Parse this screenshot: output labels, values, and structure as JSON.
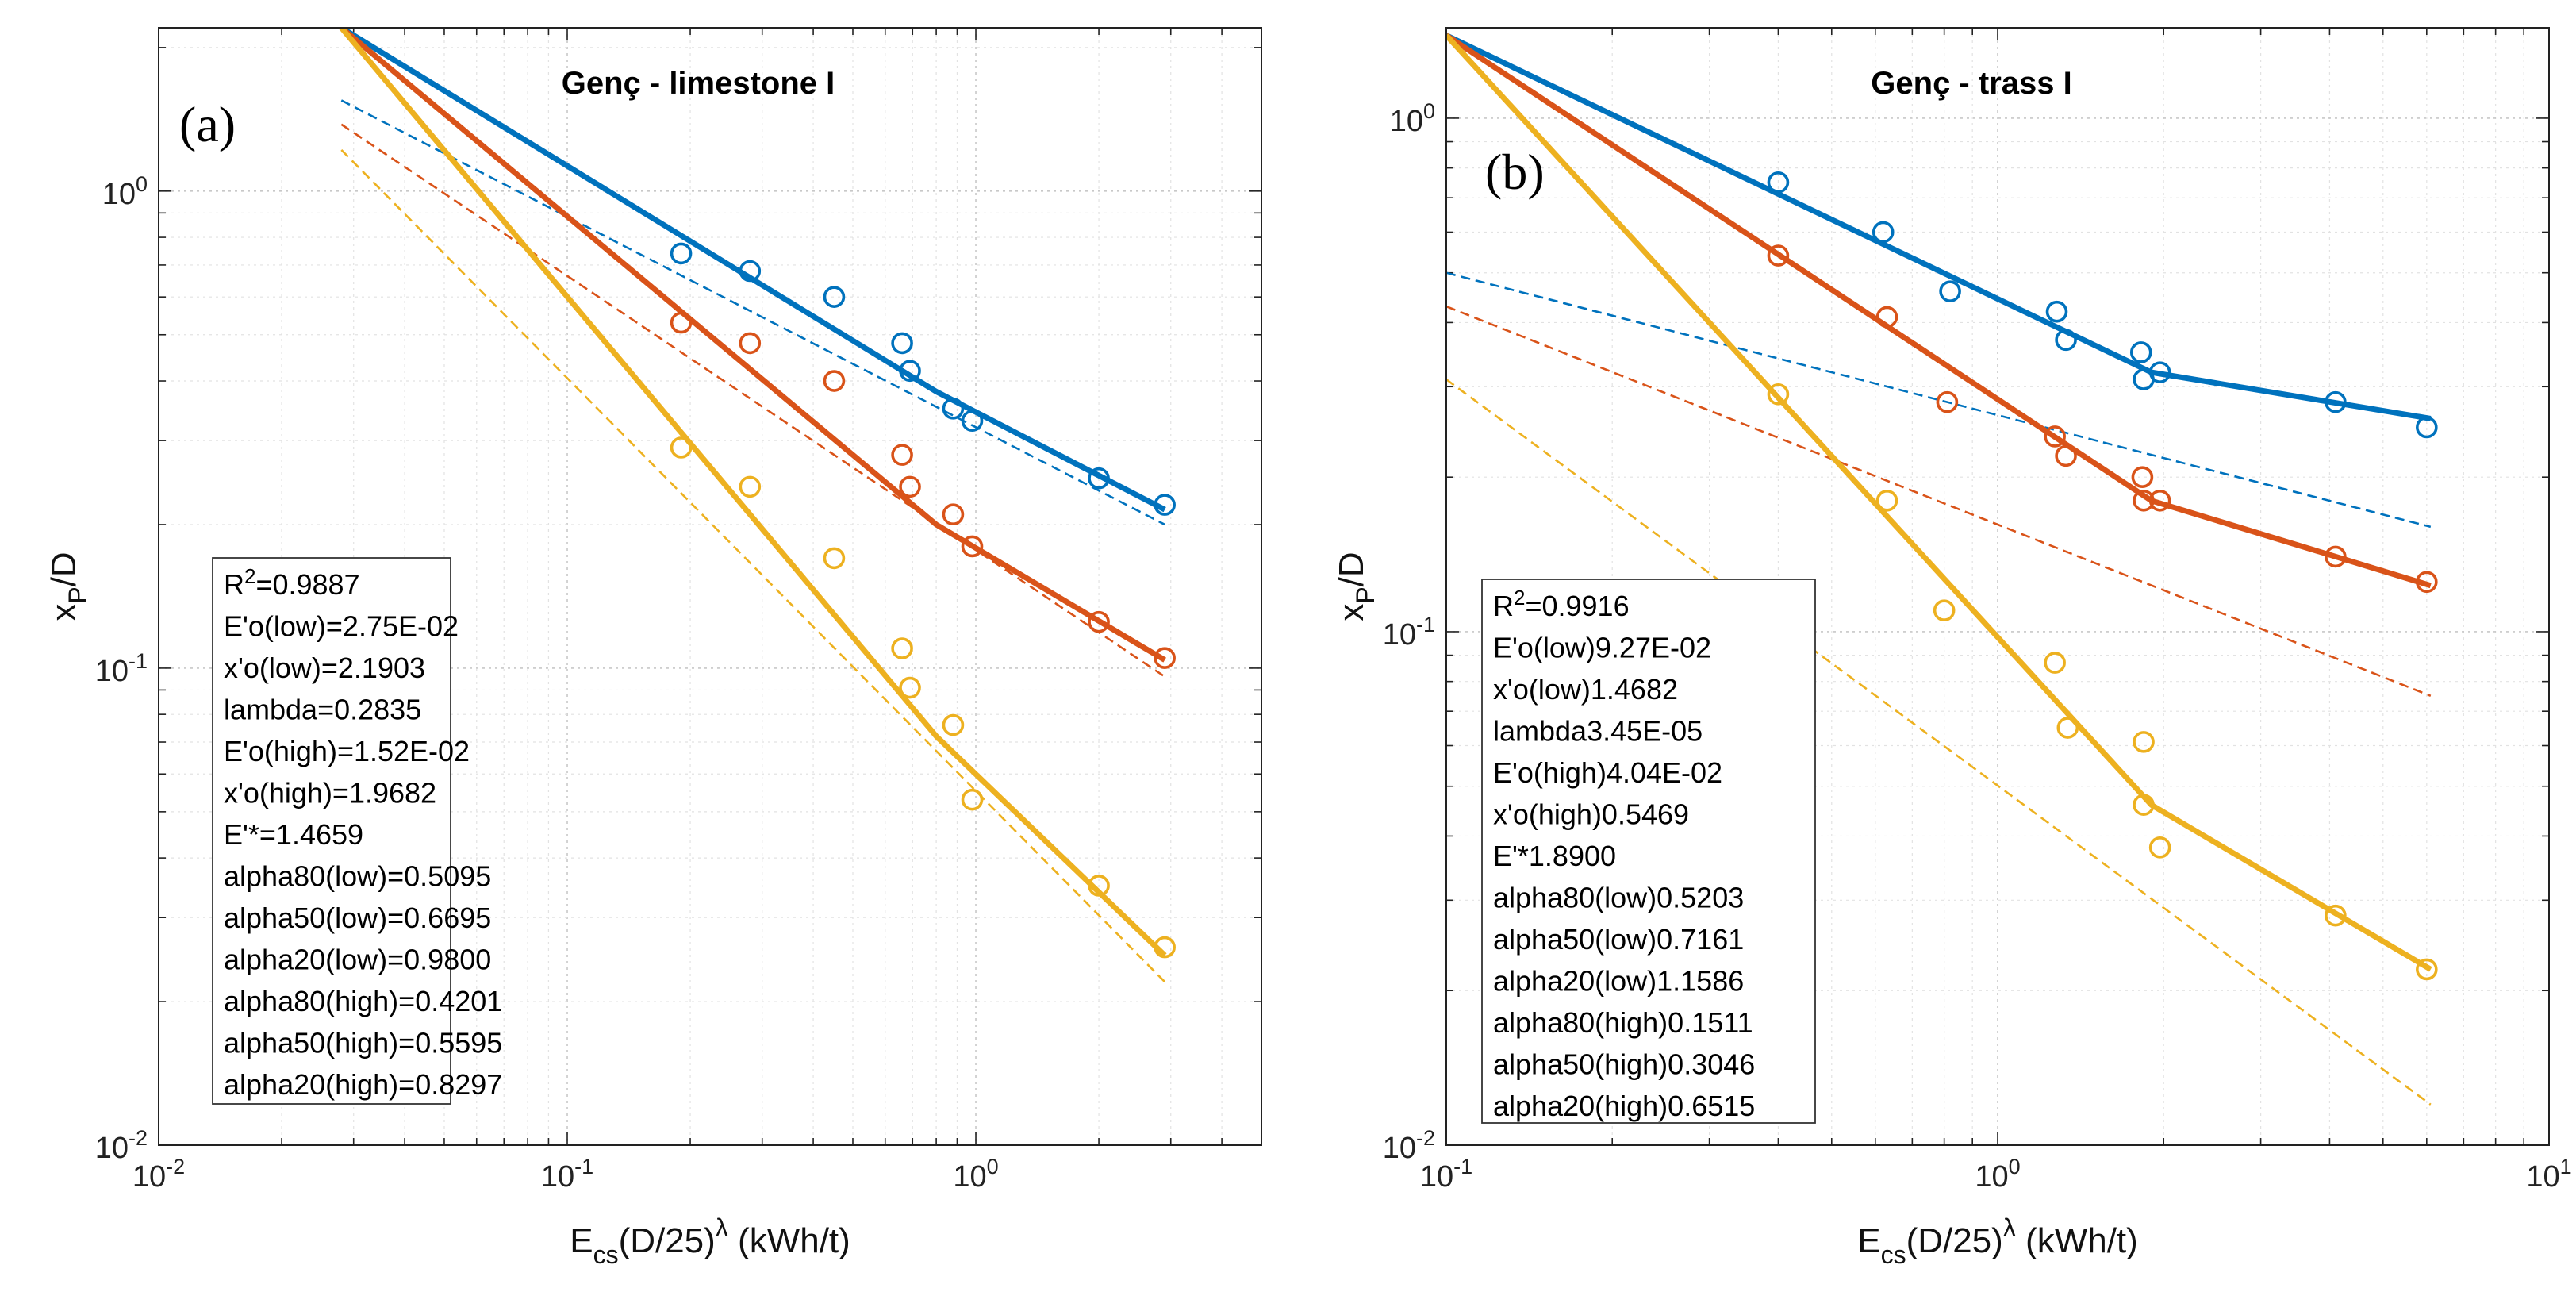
{
  "chart_data": [
    {
      "type": "line",
      "panel_label": "(a)",
      "title": "Genç - limestone I",
      "xlabel": "E_cs(D/25)^λ (kWh/t)",
      "ylabel": "x_P/D",
      "xscale": "log",
      "yscale": "log",
      "xlim": [
        0.01,
        5
      ],
      "ylim": [
        0.01,
        2.2
      ],
      "grid": true,
      "x_tick_labels": [
        {
          "v": 0.01,
          "base": "10",
          "exp": "-2"
        },
        {
          "v": 0.1,
          "base": "10",
          "exp": "-1"
        },
        {
          "v": 1,
          "base": "10",
          "exp": "0"
        }
      ],
      "y_tick_labels": [
        {
          "v": 0.01,
          "base": "10",
          "exp": "-2"
        },
        {
          "v": 0.1,
          "base": "10",
          "exp": "-1"
        },
        {
          "v": 1,
          "base": "10",
          "exp": "0"
        }
      ],
      "series": [
        {
          "name": "alpha80",
          "color": "#0072BD",
          "points": [
            [
              0.19,
              0.74
            ],
            [
              0.28,
              0.68
            ],
            [
              0.45,
              0.6
            ],
            [
              0.66,
              0.48
            ],
            [
              0.69,
              0.42
            ],
            [
              0.88,
              0.35
            ],
            [
              0.98,
              0.33
            ],
            [
              2.0,
              0.25
            ],
            [
              2.9,
              0.22
            ]
          ],
          "fit": [
            [
              0.028,
              2.2
            ],
            [
              0.8,
              0.38
            ],
            [
              2.9,
              0.215
            ]
          ],
          "dashed": [
            [
              0.028,
              1.55
            ],
            [
              2.9,
              0.2
            ]
          ]
        },
        {
          "name": "alpha50",
          "color": "#D95319",
          "points": [
            [
              0.19,
              0.53
            ],
            [
              0.28,
              0.48
            ],
            [
              0.45,
              0.4
            ],
            [
              0.66,
              0.28
            ],
            [
              0.69,
              0.24
            ],
            [
              0.88,
              0.21
            ],
            [
              0.98,
              0.18
            ],
            [
              2.0,
              0.125
            ],
            [
              2.9,
              0.105
            ]
          ],
          "fit": [
            [
              0.028,
              2.2
            ],
            [
              0.8,
              0.2
            ],
            [
              2.9,
              0.104
            ]
          ],
          "dashed": [
            [
              0.028,
              1.38
            ],
            [
              2.9,
              0.096
            ]
          ]
        },
        {
          "name": "alpha20",
          "color": "#EDB120",
          "points": [
            [
              0.19,
              0.29
            ],
            [
              0.28,
              0.24
            ],
            [
              0.45,
              0.17
            ],
            [
              0.66,
              0.11
            ],
            [
              0.69,
              0.091
            ],
            [
              0.88,
              0.076
            ],
            [
              0.98,
              0.053
            ],
            [
              2.0,
              0.035
            ],
            [
              2.9,
              0.026
            ]
          ],
          "fit": [
            [
              0.028,
              2.2
            ],
            [
              0.8,
              0.072
            ],
            [
              2.9,
              0.025
            ]
          ],
          "dashed": [
            [
              0.028,
              1.22
            ],
            [
              2.9,
              0.022
            ]
          ]
        }
      ],
      "annotations": [
        "R²=0.9887",
        "E'o(low)=2.75E-02",
        "x'o(low)=2.1903",
        "lambda=0.2835",
        "E'o(high)=1.52E-02",
        "x'o(high)=1.9682",
        "E'*=1.4659",
        "alpha80(low)=0.5095",
        "alpha50(low)=0.6695",
        "alpha20(low)=0.9800",
        "alpha80(high)=0.4201",
        "alpha50(high)=0.5595",
        "alpha20(high)=0.8297"
      ]
    },
    {
      "type": "line",
      "panel_label": "(b)",
      "title": "Genç - trass I",
      "xlabel": "E_cs(D/25)^λ (kWh/t)",
      "ylabel": "x_P/D",
      "xscale": "log",
      "yscale": "log",
      "xlim": [
        0.1,
        10
      ],
      "ylim": [
        0.01,
        1.5
      ],
      "grid": true,
      "x_tick_labels": [
        {
          "v": 0.1,
          "base": "10",
          "exp": "-1"
        },
        {
          "v": 1,
          "base": "10",
          "exp": "0"
        },
        {
          "v": 10,
          "base": "10",
          "exp": "1"
        }
      ],
      "y_tick_labels": [
        {
          "v": 0.01,
          "base": "10",
          "exp": "-2"
        },
        {
          "v": 0.1,
          "base": "10",
          "exp": "-1"
        },
        {
          "v": 1,
          "base": "10",
          "exp": "0"
        }
      ],
      "series": [
        {
          "name": "alpha80",
          "color": "#0072BD",
          "points": [
            [
              0.4,
              0.75
            ],
            [
              0.62,
              0.6
            ],
            [
              0.82,
              0.46
            ],
            [
              1.28,
              0.42
            ],
            [
              1.33,
              0.37
            ],
            [
              1.82,
              0.35
            ],
            [
              1.84,
              0.31
            ],
            [
              1.97,
              0.32
            ],
            [
              4.1,
              0.28
            ],
            [
              6.0,
              0.25
            ]
          ],
          "fit": [
            [
              0.1,
              1.45
            ],
            [
              1.9,
              0.32
            ],
            [
              6.1,
              0.26
            ]
          ],
          "dashed": [
            [
              0.1,
              0.5
            ],
            [
              6.1,
              0.16
            ]
          ]
        },
        {
          "name": "alpha50",
          "color": "#D95319",
          "points": [
            [
              0.4,
              0.54
            ],
            [
              0.63,
              0.41
            ],
            [
              0.81,
              0.28
            ],
            [
              1.27,
              0.24
            ],
            [
              1.33,
              0.22
            ],
            [
              1.83,
              0.2
            ],
            [
              1.84,
              0.18
            ],
            [
              1.97,
              0.18
            ],
            [
              4.1,
              0.14
            ],
            [
              6.0,
              0.125
            ]
          ],
          "fit": [
            [
              0.1,
              1.45
            ],
            [
              1.9,
              0.18
            ],
            [
              6.1,
              0.123
            ]
          ],
          "dashed": [
            [
              0.1,
              0.43
            ],
            [
              6.1,
              0.075
            ]
          ]
        },
        {
          "name": "alpha20",
          "color": "#EDB120",
          "points": [
            [
              0.4,
              0.29
            ],
            [
              0.63,
              0.18
            ],
            [
              0.8,
              0.11
            ],
            [
              1.27,
              0.087
            ],
            [
              1.34,
              0.065
            ],
            [
              1.84,
              0.061
            ],
            [
              1.84,
              0.046
            ],
            [
              1.97,
              0.038
            ],
            [
              4.1,
              0.028
            ],
            [
              6.0,
              0.022
            ]
          ],
          "fit": [
            [
              0.1,
              1.45
            ],
            [
              1.9,
              0.046
            ],
            [
              6.1,
              0.022
            ]
          ],
          "dashed": [
            [
              0.1,
              0.31
            ],
            [
              6.1,
              0.012
            ]
          ]
        }
      ],
      "annotations": [
        "R²=0.9916",
        "E'o(low)9.27E-02",
        "x'o(low)1.4682",
        "lambda3.45E-05",
        "E'o(high)4.04E-02",
        "x'o(high)0.5469",
        "E'*1.8900",
        "alpha80(low)0.5203",
        "alpha50(low)0.7161",
        "alpha20(low)1.1586",
        "alpha80(high)0.1511",
        "alpha50(high)0.3046",
        "alpha20(high)0.6515"
      ]
    }
  ]
}
